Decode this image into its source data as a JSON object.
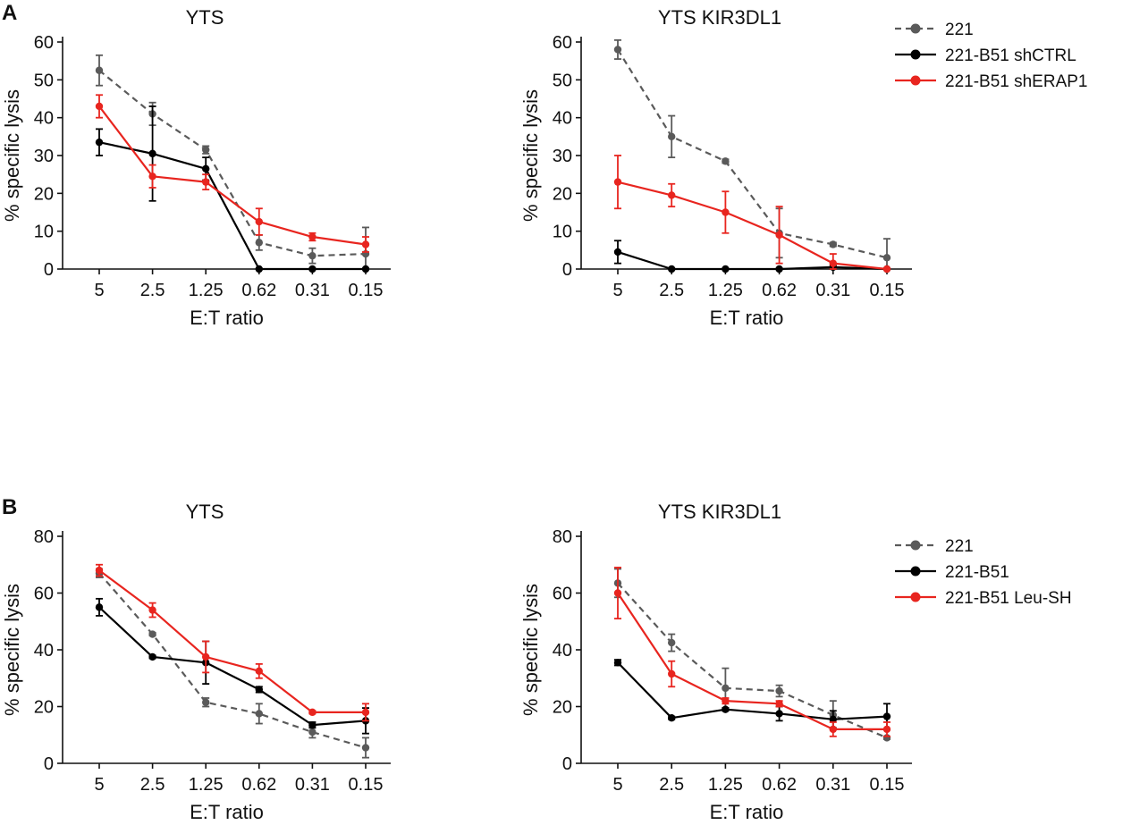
{
  "figure": {
    "panel_labels": [
      "A",
      "B"
    ]
  },
  "legends": {
    "A": [
      {
        "label": "221",
        "color": "#5a5a5a",
        "dashed": true
      },
      {
        "label": "221-B51 shCTRL",
        "color": "#000000",
        "dashed": false
      },
      {
        "label": "221-B51 shERAP1",
        "color": "#e8251f",
        "dashed": false
      }
    ],
    "B": [
      {
        "label": "221",
        "color": "#5a5a5a",
        "dashed": true
      },
      {
        "label": "221-B51",
        "color": "#000000",
        "dashed": false
      },
      {
        "label": "221-B51 Leu-SH",
        "color": "#e8251f",
        "dashed": false
      }
    ]
  },
  "chart_data": [
    {
      "id": "A_YTS",
      "panel": "A",
      "type": "line",
      "title": "YTS",
      "xlabel": "E:T ratio",
      "ylabel": "% specific lysis",
      "categories": [
        "5",
        "2.5",
        "1.25",
        "0.62",
        "0.31",
        "0.15"
      ],
      "ylim": [
        0,
        60
      ],
      "yticks": [
        0,
        10,
        20,
        30,
        40,
        50,
        60
      ],
      "series": [
        {
          "name": "221",
          "color": "#5a5a5a",
          "dashed": true,
          "values": [
            52.5,
            41,
            31.5,
            7,
            3.5,
            4
          ],
          "errors": [
            4,
            3,
            1,
            2,
            2,
            7
          ]
        },
        {
          "name": "221-B51 shCTRL",
          "color": "#000000",
          "dashed": false,
          "values": [
            33.5,
            30.5,
            26.5,
            0,
            0,
            0
          ],
          "errors": [
            3.5,
            12.5,
            3,
            0,
            0,
            0
          ]
        },
        {
          "name": "221-B51 shERAP1",
          "color": "#e8251f",
          "dashed": false,
          "values": [
            43,
            24.5,
            23,
            12.5,
            8.5,
            6.5
          ],
          "errors": [
            3,
            3,
            2,
            3.5,
            1,
            2
          ]
        }
      ]
    },
    {
      "id": "A_KIR",
      "panel": "A",
      "type": "line",
      "title": "YTS KIR3DL1",
      "xlabel": "E:T ratio",
      "ylabel": "% specific lysis",
      "categories": [
        "5",
        "2.5",
        "1.25",
        "0.62",
        "0.31",
        "0.15"
      ],
      "ylim": [
        0,
        60
      ],
      "yticks": [
        0,
        10,
        20,
        30,
        40,
        50,
        60
      ],
      "series": [
        {
          "name": "221",
          "color": "#5a5a5a",
          "dashed": true,
          "values": [
            58,
            35,
            28.5,
            9.5,
            6.5,
            3
          ],
          "errors": [
            2.5,
            5.5,
            0.5,
            6.5,
            0.5,
            5
          ]
        },
        {
          "name": "221-B51 shCTRL",
          "color": "#000000",
          "dashed": false,
          "values": [
            4.5,
            0,
            0,
            0,
            0.5,
            0
          ],
          "errors": [
            3,
            0,
            0,
            0,
            0.5,
            0
          ]
        },
        {
          "name": "221-B51 shERAP1",
          "color": "#e8251f",
          "dashed": false,
          "values": [
            23,
            19.5,
            15,
            9,
            1.5,
            0
          ],
          "errors": [
            7,
            3,
            5.5,
            7.5,
            2.5,
            0
          ]
        }
      ]
    },
    {
      "id": "B_YTS",
      "panel": "B",
      "type": "line",
      "title": "YTS",
      "xlabel": "E:T ratio",
      "ylabel": "% specific lysis",
      "categories": [
        "5",
        "2.5",
        "1.25",
        "0.62",
        "0.31",
        "0.15"
      ],
      "ylim": [
        0,
        80
      ],
      "yticks": [
        0,
        20,
        40,
        60,
        80
      ],
      "series": [
        {
          "name": "221",
          "color": "#5a5a5a",
          "dashed": true,
          "values": [
            67,
            45.5,
            21.5,
            17.5,
            11,
            5.5
          ],
          "errors": [
            1.5,
            0.5,
            1.5,
            3.5,
            2,
            3.5
          ]
        },
        {
          "name": "221-B51",
          "color": "#000000",
          "dashed": false,
          "values": [
            55,
            37.5,
            35.5,
            26,
            13.5,
            15
          ],
          "errors": [
            3,
            0.5,
            7.5,
            1,
            1,
            4.5
          ]
        },
        {
          "name": "221-B51 Leu-SH",
          "color": "#e8251f",
          "dashed": false,
          "values": [
            68,
            54,
            37.5,
            32.5,
            18,
            18
          ],
          "errors": [
            2,
            2.5,
            5.5,
            2.5,
            0.5,
            3
          ]
        }
      ]
    },
    {
      "id": "B_KIR",
      "panel": "B",
      "type": "line",
      "title": "YTS KIR3DL1",
      "xlabel": "E:T ratio",
      "ylabel": "% specific lysis",
      "categories": [
        "5",
        "2.5",
        "1.25",
        "0.62",
        "0.31",
        "0.15"
      ],
      "ylim": [
        0,
        80
      ],
      "yticks": [
        0,
        20,
        40,
        60,
        80
      ],
      "series": [
        {
          "name": "221",
          "color": "#5a5a5a",
          "dashed": true,
          "values": [
            63.5,
            42.5,
            26.5,
            25.5,
            17,
            9
          ],
          "errors": [
            5,
            3,
            7,
            2,
            5,
            0.5
          ]
        },
        {
          "name": "221-B51",
          "color": "#000000",
          "dashed": false,
          "values": [
            35.5,
            16,
            19,
            17.5,
            15.5,
            16.5
          ],
          "errors": [
            1,
            0.5,
            0.5,
            2.5,
            3,
            4.5
          ]
        },
        {
          "name": "221-B51 Leu-SH",
          "color": "#e8251f",
          "dashed": false,
          "values": [
            60,
            31.5,
            22,
            21,
            12,
            12
          ],
          "errors": [
            9,
            4.5,
            1,
            1,
            2.5,
            2.5
          ]
        }
      ]
    }
  ]
}
